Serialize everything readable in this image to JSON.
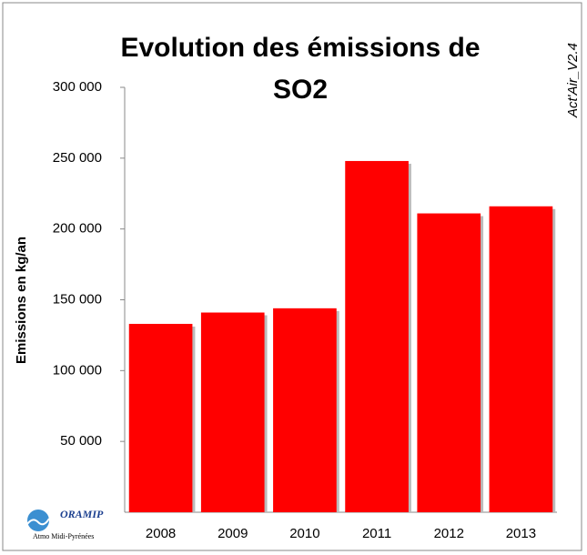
{
  "chart_data": {
    "type": "bar",
    "title": "Evolution des émissions de SO2",
    "y_label": "Emissions en kg/an",
    "annotation": "Act'Air_V2.4",
    "logo": {
      "name": "ORAMIP",
      "subtitle": "Atmo Midi-Pyrénées"
    },
    "categories": [
      "2008",
      "2009",
      "2010",
      "2011",
      "2012",
      "2013"
    ],
    "values": [
      133000,
      141000,
      144000,
      248000,
      211000,
      216000
    ],
    "color": "#ff0000",
    "ylim": [
      0,
      300000
    ],
    "yticks": [
      {
        "value": 50000,
        "label": "50 000"
      },
      {
        "value": 100000,
        "label": "100 000"
      },
      {
        "value": 150000,
        "label": "150 000"
      },
      {
        "value": 200000,
        "label": "200 000"
      },
      {
        "value": 250000,
        "label": "250 000"
      },
      {
        "value": 300000,
        "label": "300 000"
      }
    ]
  }
}
